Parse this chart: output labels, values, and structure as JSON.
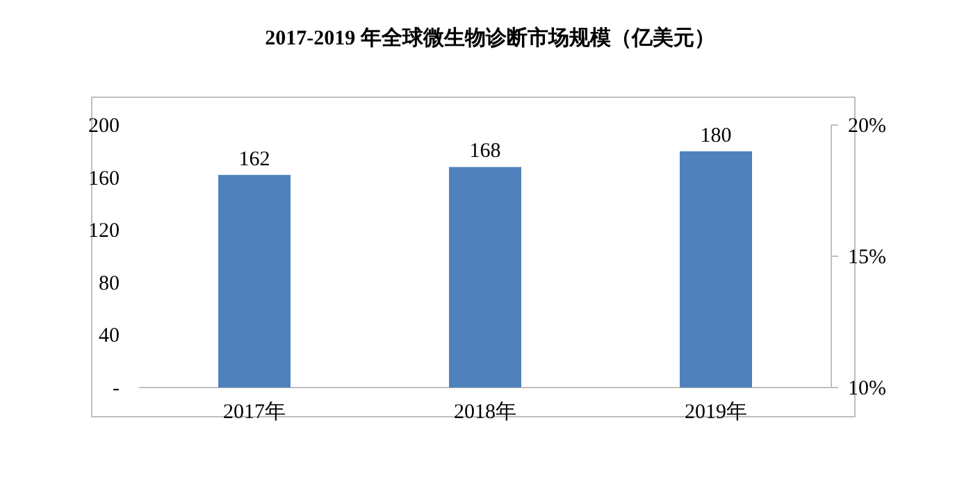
{
  "chart_data": {
    "type": "bar",
    "title": "2017-2019 年全球微生物诊断市场规模（亿美元）",
    "categories": [
      "2017年",
      "2018年",
      "2019年"
    ],
    "series": [
      {
        "color": "#4f81bd",
        "values": [
          162,
          168,
          180
        ]
      }
    ],
    "ylim": [
      0,
      200
    ],
    "yticks": [
      {
        "value": 0,
        "label": "-"
      },
      40,
      80,
      120,
      160,
      200
    ],
    "y2lim": [
      10,
      20
    ],
    "y2ticks": [
      {
        "value": 10,
        "label": "10%"
      },
      {
        "value": 15,
        "label": "15%"
      },
      {
        "value": 20,
        "label": "20%"
      }
    ],
    "data_labels": true,
    "grid": false
  }
}
